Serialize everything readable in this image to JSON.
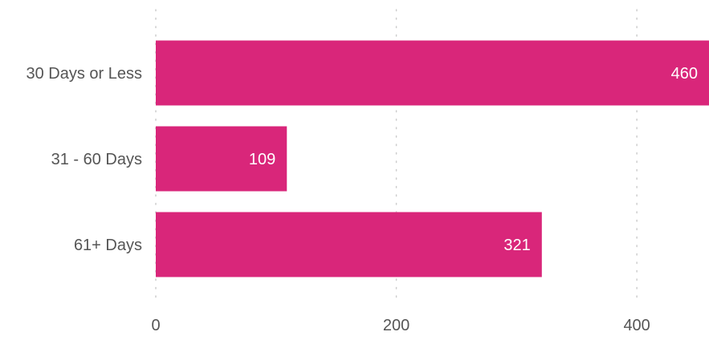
{
  "chart_data": {
    "type": "bar",
    "orientation": "horizontal",
    "categories": [
      "30 Days or Less",
      "31 - 60 Days",
      "61+ Days"
    ],
    "values": [
      460,
      109,
      321
    ],
    "data_labels": [
      "460",
      "109",
      "321"
    ],
    "xticks": [
      0,
      200,
      400
    ],
    "xtick_labels": [
      "0",
      "200",
      "400"
    ],
    "xlim": [
      0,
      460
    ],
    "title": "",
    "xlabel": "",
    "ylabel": "",
    "grid": "vertical dotted",
    "legend": "none",
    "colors": {
      "bar": "#d9267a",
      "bar_label": "#ffffff",
      "axis_text": "#555555",
      "grid": "#cccccc"
    }
  }
}
